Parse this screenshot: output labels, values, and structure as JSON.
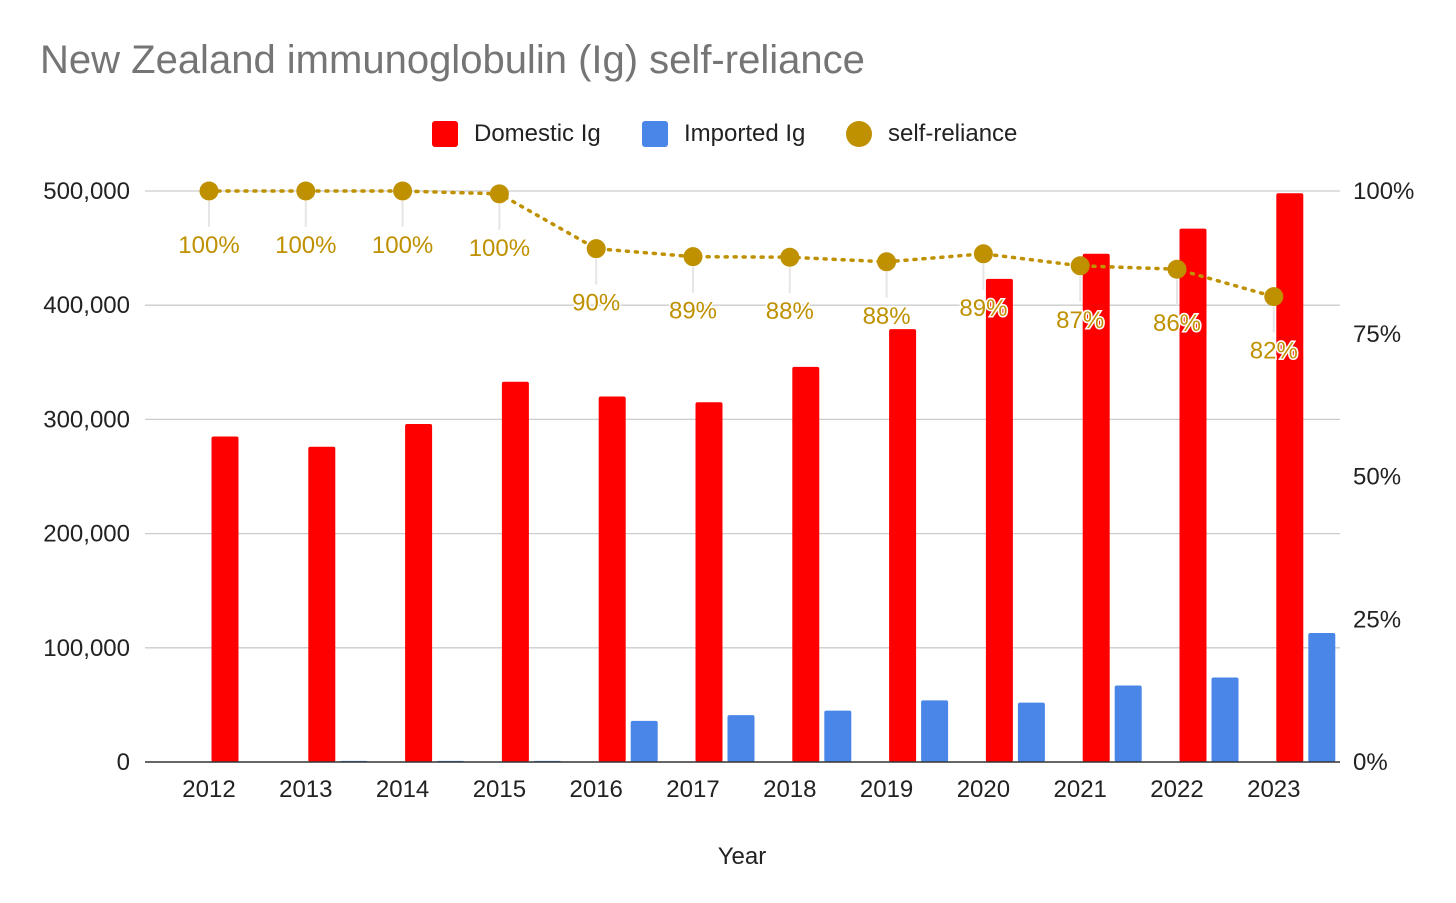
{
  "chart_data": {
    "type": "bar",
    "title": "New Zealand immunoglobulin (Ig) self-reliance",
    "xlabel": "Year",
    "ylabel": "",
    "ylabel_right": "",
    "categories": [
      "2012",
      "2013",
      "2014",
      "2015",
      "2016",
      "2017",
      "2018",
      "2019",
      "2020",
      "2021",
      "2022",
      "2023"
    ],
    "series": [
      {
        "name": "Domestic Ig",
        "type": "bar",
        "axis": "left",
        "color": "#ff0000",
        "values": [
          285000,
          276000,
          296000,
          333000,
          320000,
          315000,
          346000,
          379000,
          423000,
          445000,
          467000,
          498000
        ]
      },
      {
        "name": "Imported Ig",
        "type": "bar",
        "axis": "left",
        "color": "#4a86e8",
        "values": [
          0,
          1000,
          1000,
          1000,
          36000,
          41000,
          45000,
          54000,
          52000,
          67000,
          74000,
          113000
        ]
      },
      {
        "name": "self-reliance",
        "type": "line",
        "style": "dotted",
        "axis": "right",
        "color": "#bf9000",
        "values": [
          100,
          100,
          100,
          99.5,
          89.9,
          88.5,
          88.4,
          87.6,
          89.0,
          86.9,
          86.3,
          81.5
        ],
        "labels": [
          "100%",
          "100%",
          "100%",
          "100%",
          "90%",
          "89%",
          "88%",
          "88%",
          "89%",
          "87%",
          "86%",
          "82%"
        ]
      }
    ],
    "ylim": [
      0,
      500000
    ],
    "yticks": [
      "0",
      "100,000",
      "200,000",
      "300,000",
      "400,000",
      "500,000"
    ],
    "ylim_right": [
      0,
      100
    ],
    "yticks_right": [
      "0%",
      "25%",
      "50%",
      "75%",
      "100%"
    ],
    "grid": true,
    "legend_position": "top"
  }
}
